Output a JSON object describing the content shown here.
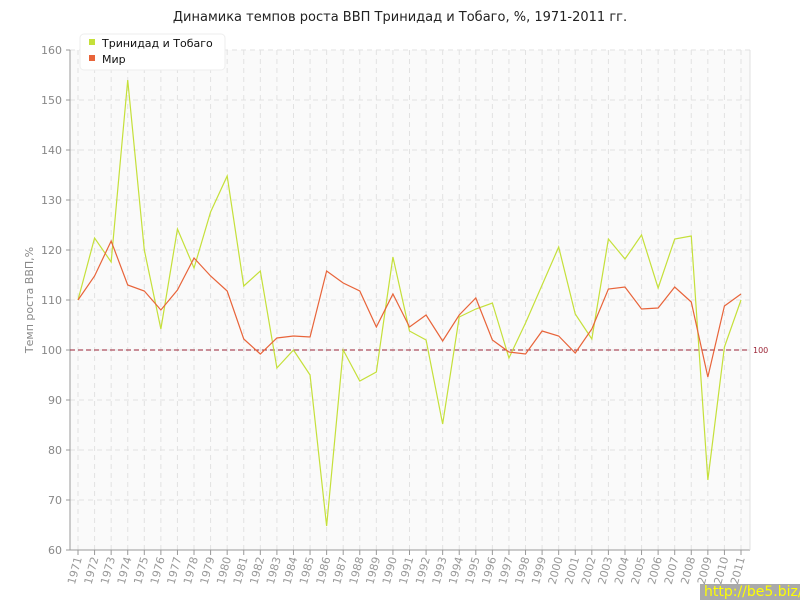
{
  "chart_data": {
    "type": "line",
    "title": "Динамика темпов роста ВВП Тринидад и Тобаго, %, 1971-2011 гг.",
    "ylabel": "Темп роста ВВП,%",
    "xlabel": "",
    "ylim": [
      60,
      160
    ],
    "yticks": [
      60,
      70,
      80,
      90,
      100,
      110,
      120,
      130,
      140,
      150,
      160
    ],
    "grid": true,
    "legend": "top-left",
    "x": [
      "1971",
      "1972",
      "1973",
      "1974",
      "1975",
      "1976",
      "1977",
      "1978",
      "1979",
      "1980",
      "1981",
      "1982",
      "1983",
      "1984",
      "1985",
      "1986",
      "1987",
      "1988",
      "1989",
      "1990",
      "1991",
      "1992",
      "1993",
      "1994",
      "1995",
      "1996",
      "1997",
      "1998",
      "1999",
      "2000",
      "2001",
      "2002",
      "2003",
      "2004",
      "2005",
      "2006",
      "2007",
      "2008",
      "2009",
      "2010",
      "2011"
    ],
    "series": [
      {
        "name": "Тринидад и Тобаго",
        "color": "#c5e03a",
        "values": [
          110,
          122.4,
          117.6,
          154,
          120,
          104.2,
          124.2,
          116.4,
          127.6,
          134.8,
          112.8,
          115.8,
          96.4,
          100,
          95,
          64.8,
          100,
          93.8,
          95.6,
          118.6,
          103.8,
          102,
          85.2,
          106.6,
          108.2,
          109.4,
          98.4,
          105.4,
          113,
          120.6,
          107.2,
          102.2,
          122.2,
          118.2,
          123,
          112.4,
          122.2,
          122.8,
          74,
          100.6,
          110
        ]
      },
      {
        "name": "Мир",
        "color": "#e8643a",
        "values": [
          110,
          114.8,
          121.8,
          113,
          111.8,
          108,
          112,
          118.4,
          114.8,
          111.8,
          102.2,
          99.2,
          102.4,
          102.8,
          102.6,
          115.8,
          113.4,
          111.8,
          104.6,
          111.2,
          104.6,
          107,
          101.8,
          107,
          110.4,
          102,
          99.6,
          99.2,
          103.8,
          102.8,
          99.4,
          104.2,
          112.2,
          112.6,
          108.2,
          108.4,
          112.6,
          109.6,
          94.6,
          108.8,
          111.2
        ]
      }
    ],
    "reference_line": {
      "value": 100,
      "label": "100",
      "color": "#9b2335"
    }
  },
  "watermark": "http://be5.biz/"
}
